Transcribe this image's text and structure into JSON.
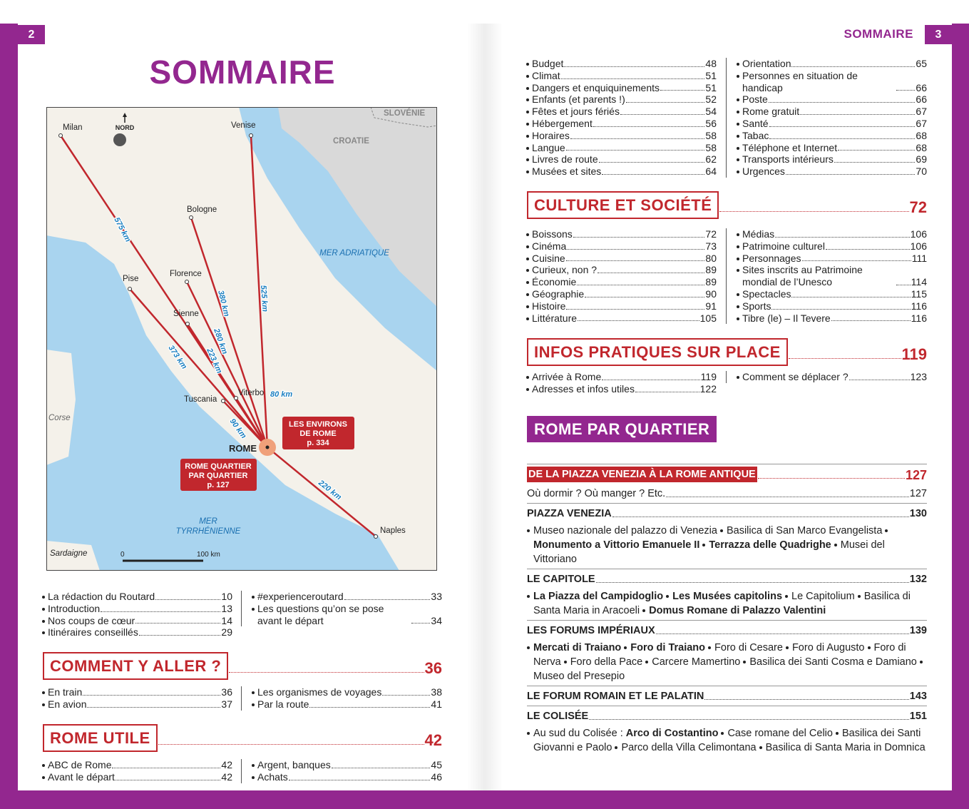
{
  "left": {
    "page_number": "2",
    "title": "SOMMAIRE",
    "map": {
      "north": "NORD",
      "cities": [
        "Milan",
        "Venise",
        "Bologne",
        "Florence",
        "Pise",
        "Sienne",
        "Viterbo",
        "Tuscania",
        "Naples",
        "ROME"
      ],
      "countries": [
        "SLOVÉNIE",
        "CROATIE"
      ],
      "islands": [
        "Corse",
        "Sardaigne"
      ],
      "sea_adriatic": "MER  ADRIATIQUE",
      "sea_tyrrhenian": [
        "MER",
        "TYRRHÉNIENNE"
      ],
      "distances": [
        "575 km",
        "380 km",
        "525 km",
        "280 km",
        "223 km",
        "373 km",
        "80 km",
        "90 km",
        "220 km"
      ],
      "callouts": [
        {
          "lines": [
            "LES ENVIRONS",
            "DE ROME",
            "p. 334"
          ]
        },
        {
          "lines": [
            "ROME QUARTIER",
            "PAR QUARTIER",
            "p. 127"
          ]
        }
      ],
      "scale": [
        "0",
        "100 km"
      ]
    },
    "intro": {
      "col1": [
        {
          "label": "La rédaction du Routard",
          "page": 10
        },
        {
          "label": "Introduction",
          "page": 13
        },
        {
          "label": "Nos coups de cœur",
          "page": 14
        },
        {
          "label": "Itinéraires conseillés",
          "page": 29
        }
      ],
      "col2": [
        {
          "label": "#experienceroutard",
          "page": 33
        },
        {
          "label": "Les questions qu’on se pose avant le départ",
          "page": 34
        }
      ]
    },
    "sections": [
      {
        "title": "COMMENT Y ALLER ?",
        "page": 36,
        "col1": [
          {
            "label": "En train",
            "page": 36
          },
          {
            "label": "En avion",
            "page": 37
          }
        ],
        "col2": [
          {
            "label": "Les organismes de voyages",
            "page": 38
          },
          {
            "label": "Par la route",
            "page": 41
          }
        ]
      },
      {
        "title": "ROME UTILE",
        "page": 42,
        "col1": [
          {
            "label": "ABC de Rome",
            "page": 42
          },
          {
            "label": "Avant le départ",
            "page": 42
          }
        ],
        "col2": [
          {
            "label": "Argent, banques",
            "page": 45
          },
          {
            "label": "Achats",
            "page": 46
          }
        ]
      }
    ]
  },
  "right": {
    "header": "SOMMAIRE",
    "page_number": "3",
    "rome_utile_continued": {
      "col1": [
        {
          "label": "Budget",
          "page": 48
        },
        {
          "label": "Climat",
          "page": 51
        },
        {
          "label": "Dangers et enquiquinements",
          "page": 51
        },
        {
          "label": "Enfants (et parents !)",
          "page": 52
        },
        {
          "label": "Fêtes et jours fériés",
          "page": 54
        },
        {
          "label": "Hébergement",
          "page": 56
        },
        {
          "label": "Horaires",
          "page": 58
        },
        {
          "label": "Langue",
          "page": 58
        },
        {
          "label": "Livres de route",
          "page": 62
        },
        {
          "label": "Musées et sites",
          "page": 64
        }
      ],
      "col2": [
        {
          "label": "Orientation",
          "page": 65
        },
        {
          "label": "Personnes en situation de handicap",
          "page": 66
        },
        {
          "label": "Poste",
          "page": 66
        },
        {
          "label": "Rome gratuit",
          "page": 67
        },
        {
          "label": "Santé",
          "page": 67
        },
        {
          "label": "Tabac",
          "page": 68
        },
        {
          "label": "Téléphone et Internet",
          "page": 68
        },
        {
          "label": "Transports intérieurs",
          "page": 69
        },
        {
          "label": "Urgences",
          "page": 70
        }
      ]
    },
    "sections": [
      {
        "title": "CULTURE ET SOCIÉTÉ",
        "page": 72,
        "col1": [
          {
            "label": "Boissons",
            "page": 72
          },
          {
            "label": "Cinéma",
            "page": 73
          },
          {
            "label": "Cuisine",
            "page": 80
          },
          {
            "label": "Curieux, non ?",
            "page": 89
          },
          {
            "label": "Économie",
            "page": 89
          },
          {
            "label": "Géographie",
            "page": 90
          },
          {
            "label": "Histoire",
            "page": 91
          },
          {
            "label": "Littérature",
            "page": 105
          }
        ],
        "col2": [
          {
            "label": "Médias",
            "page": 106
          },
          {
            "label": "Patrimoine culturel",
            "page": 106
          },
          {
            "label": "Personnages",
            "page": 111
          },
          {
            "label": "Sites inscrits au Patrimoine mondial de l’Unesco",
            "page": 114
          },
          {
            "label": "Spectacles",
            "page": 115
          },
          {
            "label": "Sports",
            "page": 116
          },
          {
            "label": "Tibre (le) – Il Tevere",
            "page": 116
          }
        ]
      },
      {
        "title": "INFOS PRATIQUES SUR PLACE",
        "page": 119,
        "col1": [
          {
            "label": "Arrivée à Rome",
            "page": 119
          },
          {
            "label": "Adresses et infos utiles",
            "page": 122
          }
        ],
        "col2": [
          {
            "label": "Comment se déplacer ?",
            "page": 123
          }
        ]
      }
    ],
    "rome_par_quartier": {
      "title": "ROME PAR QUARTIER",
      "subsection": {
        "title": "DE LA PIAZZA VENEZIA À LA ROME ANTIQUE",
        "page": 127,
        "entries": [
          {
            "label": "Où dormir ? Où manger ? Etc.",
            "page": 127
          },
          {
            "heading": "PIAZZA VENEZIA",
            "page": 130,
            "desc": {
              "items": [
                {
                  "text": "Museo nazionale del palazzo di Venezia"
                },
                {
                  "text": "Basilica di San Marco Evangelista"
                },
                {
                  "text": "Monumento a Vittorio Emanuele II",
                  "bold": true
                },
                {
                  "text": "Terrazza delle Quadrighe",
                  "bold": true
                },
                {
                  "text": "Musei del Vittoriano"
                }
              ]
            }
          },
          {
            "heading": "LE CAPITOLE",
            "page": 132,
            "desc": {
              "items": [
                {
                  "text": "La Piazza del Campidoglio",
                  "bold": true
                },
                {
                  "text": "Les Musées capitolins",
                  "bold": true
                },
                {
                  "text": "Le Capitolium"
                },
                {
                  "text": "Basilica di Santa Maria in Aracoeli"
                },
                {
                  "text": "Domus Romane di Palazzo Valentini",
                  "bold": true
                }
              ]
            }
          },
          {
            "heading": "LES FORUMS IMPÉRIAUX",
            "page": 139,
            "desc": {
              "items": [
                {
                  "text": "Mercati di Traiano",
                  "bold": true
                },
                {
                  "text": "Foro di Traiano",
                  "bold": true
                },
                {
                  "text": "Foro di Cesare"
                },
                {
                  "text": "Foro di Augusto"
                },
                {
                  "text": "Foro di Nerva"
                },
                {
                  "text": "Foro della Pace"
                },
                {
                  "text": "Carcere Mamertino"
                },
                {
                  "text": "Basilica dei Santi Cosma e Damiano"
                },
                {
                  "text": "Museo del Presepio"
                }
              ]
            }
          },
          {
            "heading": "LE FORUM ROMAIN ET LE PALATIN",
            "page": 143
          },
          {
            "heading": "LE COLISÉE",
            "page": 151,
            "desc": {
              "lead": "Au sud du Colisée :",
              "items": [
                {
                  "text": "Arco di Costantino",
                  "bold": true
                },
                {
                  "text": "Case romane del Celio"
                },
                {
                  "text": "Basilica dei Santi Giovanni e Paolo"
                },
                {
                  "text": "Parco della Villa Celimontana"
                },
                {
                  "text": "Basilica di Santa Maria in Domnica"
                }
              ]
            }
          }
        ]
      }
    }
  }
}
